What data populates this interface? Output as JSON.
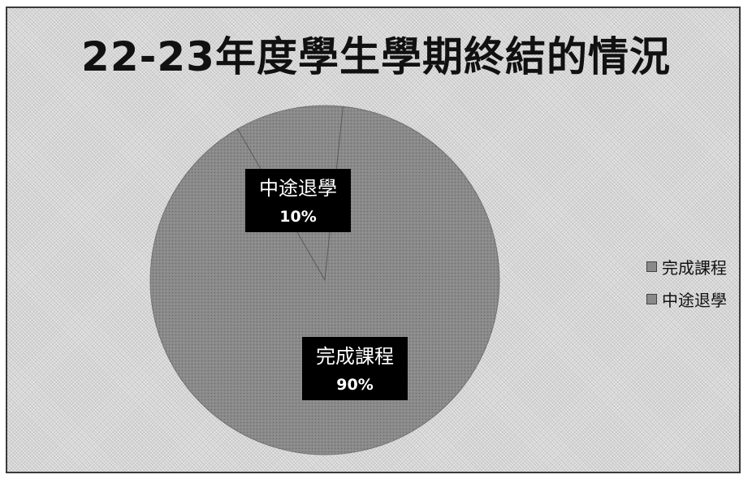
{
  "chart_data": {
    "type": "pie",
    "title": "22-23年度學生學期終結的情況",
    "categories": [
      "完成課程",
      "中途退學"
    ],
    "values": [
      90,
      10
    ],
    "data_labels": [
      {
        "category": "完成課程",
        "percent": "90%"
      },
      {
        "category": "中途退學",
        "percent": "10%"
      }
    ],
    "legend": {
      "placement": "right",
      "entries": [
        "完成課程",
        "中途退學"
      ]
    },
    "colors": {
      "slice_fill": "#8a8a8a",
      "label_box": "#000000",
      "label_text": "#ffffff",
      "background": "#e3e3e3"
    }
  }
}
